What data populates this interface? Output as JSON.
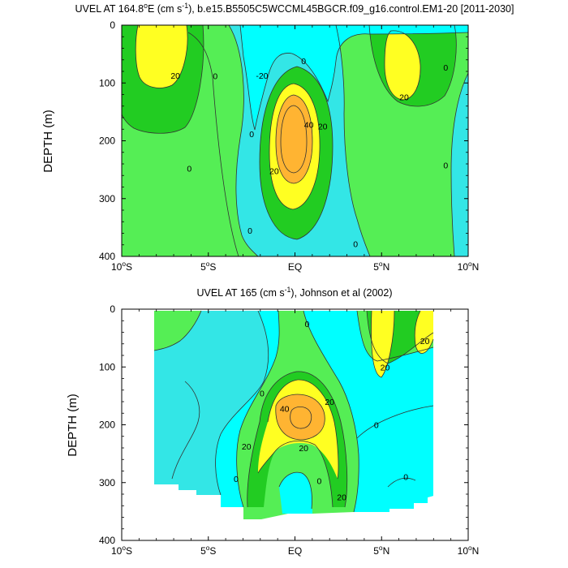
{
  "figure": {
    "colors": {
      "cyan": "#00ffff",
      "aqua": "#33e6e6",
      "green": "#55ee55",
      "lime": "#22cc22",
      "yellow": "#ffff22",
      "orange": "#ffb432",
      "line": "#333333",
      "axis": "#000000"
    }
  },
  "chart_data": [
    {
      "type": "contour",
      "title_parts": [
        "UVEL AT 164.8",
        "o",
        "E (cm s",
        "-1",
        "), b.e15.B5505C5WCCML45BGCR.f09_g16.control.EM1-20 [2011-2030]"
      ],
      "ylabel": "DEPTH (m)",
      "x_tick_labels": [
        [
          "10",
          "o",
          "S"
        ],
        [
          "5",
          "o",
          "S"
        ],
        [
          "EQ",
          "",
          ""
        ],
        [
          "5",
          "o",
          "N"
        ],
        [
          "10",
          "o",
          "N"
        ]
      ],
      "x_ticks": [
        -10,
        -5,
        0,
        5,
        10
      ],
      "y_ticks": [
        0,
        100,
        200,
        300,
        400
      ],
      "y_tick_labels": [
        "0",
        "100",
        "200",
        "300",
        "400"
      ],
      "xlim": [
        -10,
        10
      ],
      "ylim": [
        400,
        0
      ],
      "contour_labels": [
        {
          "x": -6.9,
          "y": 87,
          "text": "20"
        },
        {
          "x": -4.6,
          "y": 88,
          "text": "0"
        },
        {
          "x": -1.9,
          "y": 87,
          "text": "-20"
        },
        {
          "x": 0.5,
          "y": 62,
          "text": "0"
        },
        {
          "x": 0.8,
          "y": 172,
          "text": "40"
        },
        {
          "x": 1.6,
          "y": 175,
          "text": "20"
        },
        {
          "x": -1.2,
          "y": 252,
          "text": "20"
        },
        {
          "x": -6.1,
          "y": 248,
          "text": "0"
        },
        {
          "x": -2.5,
          "y": 188,
          "text": "0"
        },
        {
          "x": -2.6,
          "y": 355,
          "text": "0"
        },
        {
          "x": 3.5,
          "y": 378,
          "text": "0"
        },
        {
          "x": 6.3,
          "y": 124,
          "text": "20"
        },
        {
          "x": 8.7,
          "y": 73,
          "text": "0"
        },
        {
          "x": 8.7,
          "y": 242,
          "text": "0"
        }
      ]
    },
    {
      "type": "contour",
      "title_parts": [
        "UVEL AT 165 (cm s",
        "-1",
        "), Johnson et al (2002)"
      ],
      "ylabel": "DEPTH (m)",
      "x_tick_labels": [
        [
          "10",
          "o",
          "S"
        ],
        [
          "5",
          "o",
          "S"
        ],
        [
          "EQ",
          "",
          ""
        ],
        [
          "5",
          "o",
          "N"
        ],
        [
          "10",
          "o",
          "N"
        ]
      ],
      "x_ticks": [
        -10,
        -5,
        0,
        5,
        10
      ],
      "y_ticks": [
        0,
        100,
        200,
        300,
        400
      ],
      "y_tick_labels": [
        "0",
        "100",
        "200",
        "300",
        "400"
      ],
      "xlim": [
        -10,
        10
      ],
      "ylim": [
        400,
        0
      ],
      "contour_labels": [
        {
          "x": 0.7,
          "y": 25,
          "text": "0"
        },
        {
          "x": 7.5,
          "y": 55,
          "text": "20"
        },
        {
          "x": 5.2,
          "y": 100,
          "text": "20"
        },
        {
          "x": -1.9,
          "y": 145,
          "text": "0"
        },
        {
          "x": -0.6,
          "y": 172,
          "text": "40"
        },
        {
          "x": 2.0,
          "y": 160,
          "text": "20"
        },
        {
          "x": 4.7,
          "y": 200,
          "text": "0"
        },
        {
          "x": -2.8,
          "y": 237,
          "text": "20"
        },
        {
          "x": 0.5,
          "y": 240,
          "text": "20"
        },
        {
          "x": 6.4,
          "y": 290,
          "text": "0"
        },
        {
          "x": -3.4,
          "y": 293,
          "text": "0"
        },
        {
          "x": 1.4,
          "y": 297,
          "text": "0"
        },
        {
          "x": 2.7,
          "y": 325,
          "text": "20"
        }
      ]
    }
  ]
}
